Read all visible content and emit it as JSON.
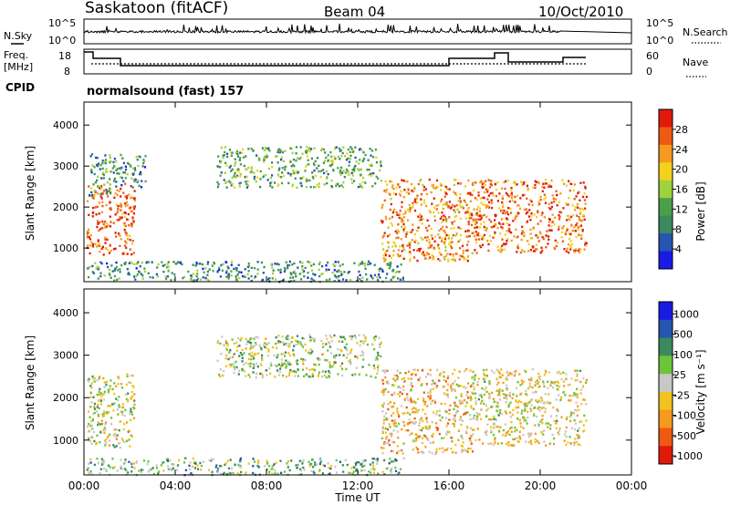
{
  "header": {
    "station": "Saskatoon (fitACF)",
    "beam": "Beam 04",
    "date": "10/Oct/2010"
  },
  "noise_panel": {
    "left_label": "N.Sky",
    "right_label": "N.Search",
    "left_ticks": [
      "10^5",
      "10^0"
    ],
    "right_ticks": [
      "10^5",
      "10^0"
    ]
  },
  "freq_panel": {
    "left_label_line1": "Freq.",
    "left_label_line2": "[MHz]",
    "right_label": "Nave",
    "left_ticks": [
      "18",
      "8"
    ],
    "right_ticks": [
      "60",
      "0"
    ]
  },
  "cpid": {
    "label": "CPID",
    "value": "normalsound (fast) 157"
  },
  "colors": {
    "power": [
      "#1a1ae6",
      "#2455b0",
      "#3b8a5e",
      "#4aa04a",
      "#9fd23c",
      "#f2d21e",
      "#f59a1e",
      "#ee5a12",
      "#e01a0a"
    ],
    "velocity": [
      "#1a1ae6",
      "#2455b0",
      "#3b8a5e",
      "#6cc43a",
      "#c8c8c8",
      "#f2c21e",
      "#f59a1e",
      "#ee5a12",
      "#e01a0a"
    ]
  },
  "chart_data": [
    {
      "type": "heatmap",
      "title": "",
      "xlabel": "Time UT",
      "ylabel": "Slant Range [km]",
      "x_ticks": [
        "00:00",
        "04:00",
        "08:00",
        "12:00",
        "16:00",
        "20:00",
        "00:00"
      ],
      "y_ticks": [
        "1000",
        "2000",
        "3000",
        "4000"
      ],
      "xlim_hours": [
        0,
        24
      ],
      "ylim_km": [
        180,
        4560
      ],
      "colorbar": {
        "label": "Power [dB]",
        "ticks": [
          "4",
          "8",
          "12",
          "16",
          "20",
          "24",
          "28"
        ]
      },
      "regions": [
        {
          "t0": 0.1,
          "t1": 2.2,
          "r0": 850,
          "r1": 2600,
          "level": 0.85
        },
        {
          "t0": 0.2,
          "t1": 1.2,
          "r0": 2300,
          "r1": 3400,
          "level": 0.35
        },
        {
          "t0": 1.2,
          "t1": 2.7,
          "r0": 2500,
          "r1": 3300,
          "level": 0.3
        },
        {
          "t0": 5.8,
          "t1": 13.0,
          "r0": 2500,
          "r1": 3500,
          "level": 0.4
        },
        {
          "t0": 0.1,
          "t1": 14.0,
          "r0": 200,
          "r1": 700,
          "level": 0.3
        },
        {
          "t0": 13.0,
          "t1": 17.0,
          "r0": 700,
          "r1": 2700,
          "level": 0.75
        },
        {
          "t0": 17.0,
          "t1": 22.0,
          "r0": 900,
          "r1": 2700,
          "level": 0.8
        }
      ]
    },
    {
      "type": "heatmap",
      "title": "",
      "xlabel": "Time UT",
      "ylabel": "Slant Range [km]",
      "x_ticks": [
        "00:00",
        "04:00",
        "08:00",
        "12:00",
        "16:00",
        "20:00",
        "00:00"
      ],
      "y_ticks": [
        "1000",
        "2000",
        "3000",
        "4000"
      ],
      "xlim_hours": [
        0,
        24
      ],
      "ylim_km": [
        180,
        4560
      ],
      "colorbar": {
        "label": "Velocity [m s⁻¹]",
        "ticks": [
          "1000",
          "500",
          "100",
          "25",
          "-25",
          "-100",
          "-500",
          "-1000"
        ]
      },
      "regions": [
        {
          "t0": 0.1,
          "t1": 2.2,
          "r0": 850,
          "r1": 2600,
          "level": 0.5
        },
        {
          "t0": 5.8,
          "t1": 13.0,
          "r0": 2500,
          "r1": 3500,
          "level": 0.45
        },
        {
          "t0": 13.0,
          "t1": 17.0,
          "r0": 700,
          "r1": 2700,
          "level": 0.62
        },
        {
          "t0": 17.0,
          "t1": 22.0,
          "r0": 900,
          "r1": 2700,
          "level": 0.55
        },
        {
          "t0": 0.1,
          "t1": 14.0,
          "r0": 200,
          "r1": 600,
          "level": 0.4
        }
      ]
    }
  ]
}
